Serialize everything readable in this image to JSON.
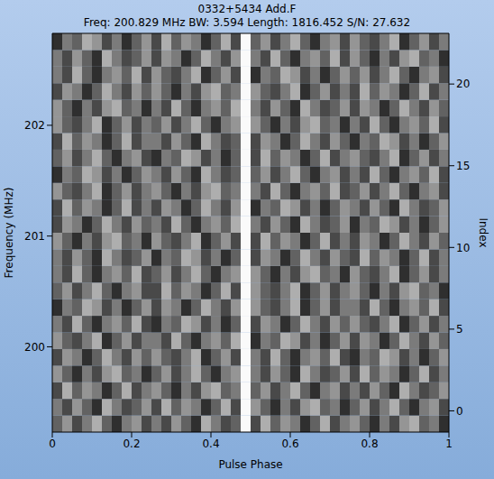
{
  "chart_data": {
    "type": "heatmap",
    "title": "0332+5434 Add.F",
    "subtitle": "Freq: 200.829 MHz BW: 3.594 Length: 1816.452 S/N: 27.632",
    "x_label": "Pulse Phase",
    "y_label": "Frequency (MHz)",
    "y2_label": "Index",
    "xlim": [
      0,
      1
    ],
    "xticks": [
      0,
      0.2,
      0.4,
      0.6,
      0.8,
      1
    ],
    "ylim": [
      199.23,
      202.83
    ],
    "yticks": [
      200,
      201,
      202
    ],
    "y2lim": [
      -1.3,
      23.1
    ],
    "y2ticks": [
      0,
      5,
      10,
      15,
      20
    ],
    "cell_range": [
      0,
      9
    ],
    "cells": [
      [
        3,
        5,
        2,
        4,
        6,
        3,
        1,
        4,
        5,
        2,
        4,
        2,
        5,
        3,
        1,
        6,
        4,
        2,
        3,
        9,
        2,
        6,
        3,
        5,
        4,
        1,
        3,
        6,
        2,
        4,
        5,
        3,
        1,
        4,
        2,
        5,
        6,
        3,
        4,
        1
      ],
      [
        4,
        2,
        5,
        3,
        1,
        6,
        4,
        2,
        3,
        5,
        2,
        6,
        3,
        5,
        4,
        1,
        3,
        6,
        2,
        9,
        5,
        3,
        1,
        4,
        2,
        5,
        6,
        3,
        4,
        1,
        3,
        5,
        2,
        4,
        6,
        3,
        1,
        4,
        5,
        2
      ],
      [
        2,
        6,
        3,
        5,
        4,
        1,
        3,
        6,
        2,
        4,
        5,
        3,
        1,
        4,
        2,
        5,
        6,
        3,
        4,
        9,
        3,
        5,
        2,
        4,
        6,
        3,
        1,
        4,
        5,
        2,
        4,
        2,
        5,
        3,
        1,
        6,
        4,
        2,
        3,
        5
      ],
      [
        5,
        3,
        1,
        4,
        2,
        5,
        6,
        3,
        4,
        1,
        3,
        5,
        2,
        4,
        6,
        3,
        1,
        4,
        5,
        9,
        4,
        2,
        5,
        3,
        1,
        6,
        4,
        2,
        3,
        5,
        2,
        6,
        3,
        5,
        4,
        1,
        3,
        6,
        2,
        4
      ],
      [
        2,
        5,
        4,
        1,
        3,
        6,
        4,
        2,
        5,
        3,
        5,
        3,
        2,
        4,
        6,
        1,
        3,
        5,
        2,
        9,
        4,
        2,
        6,
        3,
        1,
        4,
        5,
        3,
        6,
        2,
        1,
        4,
        3,
        6,
        5,
        2,
        4,
        1,
        3,
        5
      ],
      [
        5,
        3,
        2,
        4,
        6,
        1,
        3,
        5,
        2,
        4,
        4,
        2,
        6,
        3,
        1,
        4,
        5,
        3,
        6,
        9,
        1,
        4,
        3,
        6,
        5,
        2,
        4,
        1,
        3,
        5,
        2,
        5,
        4,
        1,
        3,
        6,
        4,
        2,
        5,
        3
      ],
      [
        4,
        2,
        6,
        3,
        1,
        4,
        5,
        3,
        6,
        2,
        1,
        4,
        3,
        6,
        5,
        2,
        4,
        1,
        3,
        9,
        2,
        5,
        4,
        1,
        3,
        6,
        4,
        2,
        5,
        3,
        5,
        3,
        2,
        4,
        6,
        1,
        3,
        5,
        2,
        4
      ],
      [
        1,
        4,
        3,
        6,
        5,
        2,
        4,
        1,
        3,
        5,
        2,
        5,
        4,
        1,
        3,
        6,
        4,
        2,
        5,
        9,
        5,
        3,
        2,
        4,
        6,
        1,
        3,
        5,
        2,
        4,
        4,
        2,
        6,
        3,
        1,
        4,
        5,
        3,
        6,
        2
      ],
      [
        3,
        5,
        2,
        4,
        6,
        3,
        1,
        4,
        5,
        2,
        2,
        6,
        3,
        5,
        4,
        1,
        3,
        6,
        2,
        9,
        5,
        3,
        2,
        4,
        6,
        1,
        3,
        5,
        2,
        4,
        5,
        3,
        1,
        4,
        2,
        5,
        6,
        3,
        4,
        1
      ],
      [
        4,
        2,
        6,
        3,
        1,
        4,
        5,
        3,
        6,
        2,
        3,
        5,
        2,
        4,
        6,
        3,
        1,
        4,
        5,
        9,
        5,
        3,
        1,
        4,
        2,
        5,
        6,
        3,
        4,
        1,
        5,
        3,
        2,
        4,
        6,
        1,
        3,
        5,
        2,
        4
      ],
      [
        4,
        2,
        5,
        3,
        1,
        6,
        4,
        2,
        3,
        5,
        1,
        4,
        3,
        6,
        5,
        2,
        4,
        1,
        3,
        9,
        2,
        5,
        4,
        1,
        3,
        6,
        4,
        2,
        5,
        3,
        2,
        6,
        3,
        5,
        4,
        1,
        3,
        6,
        2,
        4
      ],
      [
        5,
        3,
        1,
        4,
        2,
        5,
        6,
        3,
        4,
        1,
        5,
        3,
        2,
        4,
        6,
        1,
        3,
        5,
        2,
        9,
        2,
        6,
        3,
        5,
        4,
        1,
        3,
        6,
        2,
        4,
        2,
        5,
        4,
        1,
        3,
        6,
        4,
        2,
        5,
        3
      ],
      [
        2,
        5,
        4,
        1,
        3,
        6,
        4,
        2,
        5,
        3,
        4,
        2,
        6,
        3,
        1,
        4,
        5,
        3,
        6,
        9,
        4,
        2,
        5,
        3,
        1,
        6,
        4,
        2,
        3,
        5,
        1,
        4,
        3,
        6,
        5,
        2,
        4,
        1,
        3,
        5
      ],
      [
        2,
        6,
        3,
        5,
        4,
        1,
        3,
        6,
        2,
        4,
        2,
        5,
        4,
        1,
        3,
        6,
        4,
        2,
        5,
        9,
        1,
        4,
        3,
        6,
        5,
        2,
        4,
        1,
        3,
        5,
        4,
        2,
        5,
        3,
        1,
        6,
        4,
        2,
        3,
        5
      ],
      [
        5,
        3,
        2,
        4,
        6,
        1,
        3,
        5,
        2,
        4,
        5,
        3,
        1,
        4,
        2,
        5,
        6,
        3,
        4,
        9,
        4,
        2,
        6,
        3,
        1,
        4,
        5,
        3,
        6,
        2,
        3,
        5,
        2,
        4,
        6,
        3,
        1,
        4,
        5,
        2
      ],
      [
        1,
        4,
        3,
        6,
        5,
        2,
        4,
        1,
        3,
        5,
        4,
        2,
        5,
        3,
        1,
        6,
        4,
        2,
        3,
        9,
        3,
        5,
        2,
        4,
        6,
        3,
        1,
        4,
        5,
        2,
        4,
        2,
        6,
        3,
        1,
        4,
        5,
        3,
        6,
        2
      ],
      [
        3,
        5,
        2,
        4,
        6,
        3,
        1,
        4,
        5,
        2,
        1,
        4,
        3,
        6,
        5,
        2,
        4,
        1,
        3,
        9,
        2,
        6,
        3,
        5,
        4,
        1,
        3,
        6,
        2,
        4,
        5,
        3,
        2,
        4,
        6,
        1,
        3,
        5,
        2,
        4
      ],
      [
        2,
        6,
        3,
        5,
        4,
        1,
        3,
        6,
        2,
        4,
        4,
        2,
        5,
        3,
        1,
        6,
        4,
        2,
        3,
        9,
        2,
        5,
        4,
        1,
        3,
        6,
        4,
        2,
        5,
        3,
        1,
        4,
        3,
        6,
        5,
        2,
        4,
        1,
        3,
        5
      ],
      [
        5,
        3,
        2,
        4,
        6,
        1,
        3,
        5,
        2,
        4,
        3,
        5,
        2,
        4,
        6,
        3,
        1,
        4,
        5,
        9,
        5,
        3,
        1,
        4,
        2,
        5,
        6,
        3,
        4,
        1,
        4,
        2,
        6,
        3,
        1,
        4,
        5,
        3,
        6,
        2
      ],
      [
        5,
        3,
        1,
        4,
        2,
        5,
        6,
        3,
        4,
        1,
        4,
        2,
        6,
        3,
        1,
        4,
        5,
        3,
        6,
        9,
        4,
        2,
        5,
        3,
        1,
        6,
        4,
        2,
        3,
        5,
        2,
        5,
        4,
        1,
        3,
        6,
        4,
        2,
        5,
        3
      ],
      [
        2,
        5,
        4,
        1,
        3,
        6,
        4,
        2,
        5,
        3,
        5,
        3,
        1,
        4,
        2,
        5,
        6,
        3,
        4,
        9,
        5,
        3,
        2,
        4,
        6,
        1,
        3,
        5,
        2,
        4,
        2,
        6,
        3,
        5,
        4,
        1,
        3,
        6,
        2,
        4
      ],
      [
        4,
        2,
        6,
        3,
        1,
        4,
        5,
        3,
        6,
        2,
        5,
        3,
        2,
        4,
        6,
        1,
        3,
        5,
        2,
        9,
        1,
        4,
        3,
        6,
        5,
        2,
        4,
        1,
        3,
        5,
        3,
        5,
        2,
        4,
        6,
        3,
        1,
        4,
        5,
        2
      ],
      [
        4,
        2,
        5,
        3,
        1,
        6,
        4,
        2,
        3,
        5,
        2,
        5,
        4,
        1,
        3,
        6,
        4,
        2,
        5,
        9,
        4,
        2,
        6,
        3,
        1,
        4,
        5,
        3,
        6,
        2,
        5,
        3,
        1,
        4,
        2,
        5,
        6,
        3,
        4,
        1
      ],
      [
        1,
        4,
        3,
        6,
        5,
        2,
        4,
        1,
        3,
        5,
        2,
        6,
        3,
        5,
        4,
        1,
        3,
        6,
        2,
        9,
        3,
        5,
        2,
        4,
        6,
        3,
        1,
        4,
        5,
        2,
        5,
        3,
        2,
        4,
        6,
        1,
        3,
        5,
        2,
        4
      ]
    ]
  }
}
